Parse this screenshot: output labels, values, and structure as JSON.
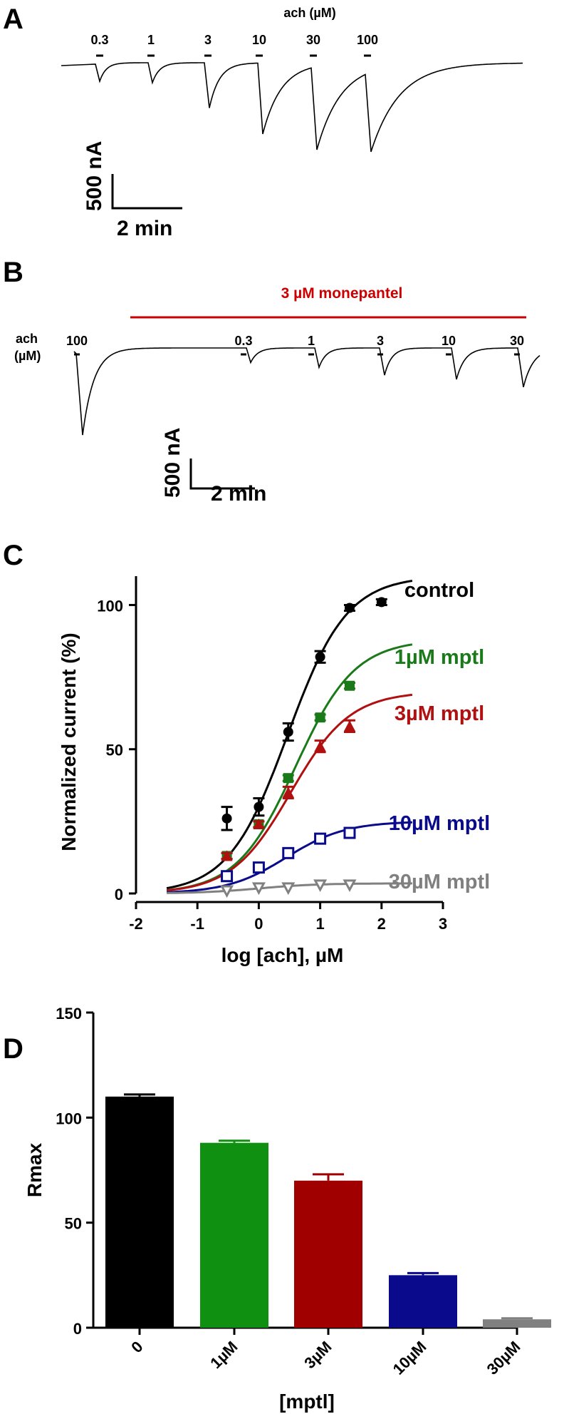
{
  "panels": {
    "A": {
      "letter": "A",
      "title": "ach (µM)",
      "concs": [
        "0.3",
        "1",
        "3",
        "10",
        "30",
        "100"
      ],
      "scale_current": "500 nA",
      "scale_time": "2 min"
    },
    "B": {
      "letter": "B",
      "drug_label": "3 µM monepantel",
      "ach_label_1": "ach",
      "ach_label_2": "(µM)",
      "concs": [
        "100",
        "0.3",
        "1",
        "3",
        "10",
        "30"
      ],
      "scale_current": "500 nA",
      "scale_time": "2 min"
    },
    "C": {
      "letter": "C"
    },
    "D": {
      "letter": "D"
    }
  },
  "chart_data": [
    {
      "panel": "A",
      "type": "line",
      "description_units": "peak inward current (nA) per ACh application",
      "x_label": "ach (µM)",
      "categories": [
        "0.3",
        "1",
        "3",
        "10",
        "30",
        "100"
      ],
      "values": [
        -250,
        -270,
        -640,
        -1020,
        -1250,
        -1280
      ],
      "colors": {
        "trace": "#000000"
      }
    },
    {
      "panel": "B",
      "type": "line",
      "x_label": "ach (µM)",
      "categories": [
        "100",
        "0.3",
        "1",
        "3",
        "10",
        "30"
      ],
      "values": [
        -1430,
        -220,
        -300,
        -430,
        -500,
        -630
      ],
      "colors": {
        "trace": "#000000",
        "drug_bar": "#cc0000"
      }
    },
    {
      "panel": "C",
      "type": "scatter",
      "xlabel": "log [ach], µM",
      "ylabel": "Normalized current (%)",
      "xlim": [
        -2,
        3
      ],
      "ylim": [
        0,
        110
      ],
      "xticks": [
        "-2",
        "-1",
        "0",
        "1",
        "2",
        "3"
      ],
      "yticks": [
        "0",
        "50",
        "100"
      ],
      "series": [
        {
          "name": "control",
          "color": "#000000",
          "marker": "circle",
          "x": [
            -0.52,
            0,
            0.48,
            1,
            1.48,
            2
          ],
          "y": [
            26,
            30,
            56,
            82,
            99,
            101
          ],
          "err": [
            4,
            3,
            3,
            2,
            1,
            1
          ],
          "fit": {
            "bottom": 0,
            "top": 110,
            "logec50": 0.47,
            "hill": 0.9
          }
        },
        {
          "name": "1µM mptl",
          "color": "#1a7a1a",
          "marker": "square",
          "x": [
            -0.52,
            0,
            0.48,
            1,
            1.48
          ],
          "y": [
            13,
            24,
            40,
            61,
            72
          ],
          "err": [
            1,
            1,
            1,
            1,
            1
          ],
          "fit": {
            "bottom": 0,
            "top": 88,
            "logec50": 0.6,
            "hill": 0.9
          }
        },
        {
          "name": "3µM mptl",
          "color": "#b01010",
          "marker": "triangle-up",
          "x": [
            -0.52,
            0,
            0.48,
            1,
            1.48
          ],
          "y": [
            13,
            24,
            35,
            51,
            58
          ],
          "err": [
            1,
            1,
            2,
            2,
            2
          ],
          "fit": {
            "bottom": 0,
            "top": 70,
            "logec50": 0.52,
            "hill": 0.9
          }
        },
        {
          "name": "10µM mptl",
          "color": "#0a0a8c",
          "marker": "square-open",
          "x": [
            -0.52,
            0,
            0.48,
            1,
            1.48
          ],
          "y": [
            6,
            9,
            14,
            19,
            21
          ],
          "err": [
            0.5,
            0.5,
            0.5,
            0.5,
            0.5
          ],
          "fit": {
            "bottom": 0,
            "top": 25,
            "logec50": 0.45,
            "hill": 0.9
          }
        },
        {
          "name": "30µM mptl",
          "color": "#808080",
          "marker": "triangle-down-open",
          "x": [
            -0.52,
            0,
            0.48,
            1,
            1.48
          ],
          "y": [
            1,
            2,
            2,
            3,
            3
          ],
          "err": [
            0.3,
            0.3,
            0.3,
            0.3,
            0.3
          ],
          "fit": {
            "bottom": 0,
            "top": 3.5,
            "logec50": 0.0,
            "hill": 0.9
          }
        }
      ]
    },
    {
      "panel": "D",
      "type": "bar",
      "xlabel": "[mptl]",
      "ylabel": "Rmax",
      "ylim": [
        0,
        150
      ],
      "yticks": [
        "0",
        "50",
        "100",
        "150"
      ],
      "categories": [
        "0",
        "1µM",
        "3µM",
        "10µM",
        "30µM"
      ],
      "values": [
        110,
        88,
        70,
        25,
        4
      ],
      "err": [
        1,
        1,
        3,
        1,
        0.5
      ],
      "colors": [
        "#000000",
        "#109010",
        "#a00000",
        "#0a0a8c",
        "#808080"
      ]
    }
  ]
}
